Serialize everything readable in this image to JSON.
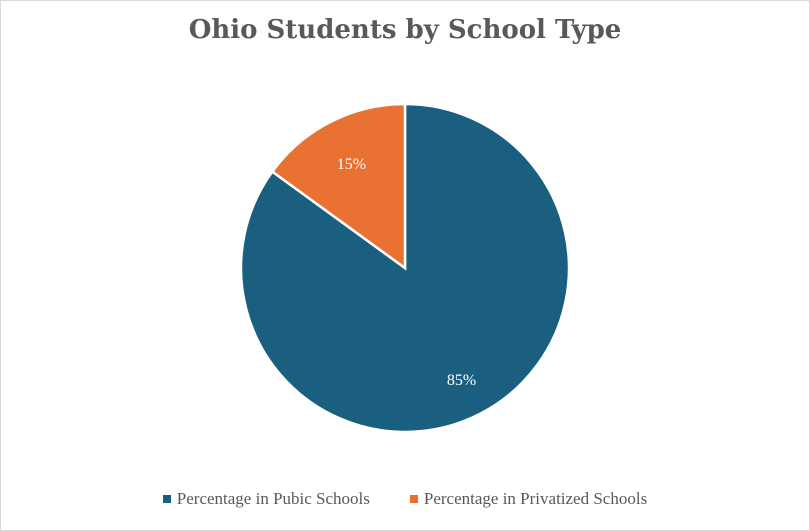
{
  "chart_data": {
    "type": "pie",
    "title": "Ohio Students by School Type",
    "categories": [
      "Percentage in Pubic Schools",
      "Percentage in Privatized Schools"
    ],
    "values": [
      85,
      15
    ],
    "labels": [
      "85%",
      "15%"
    ],
    "colors": [
      "#1a5f7f",
      "#e97132"
    ],
    "legend": "bottom",
    "start_angle_deg": 0,
    "direction": "clockwise"
  }
}
